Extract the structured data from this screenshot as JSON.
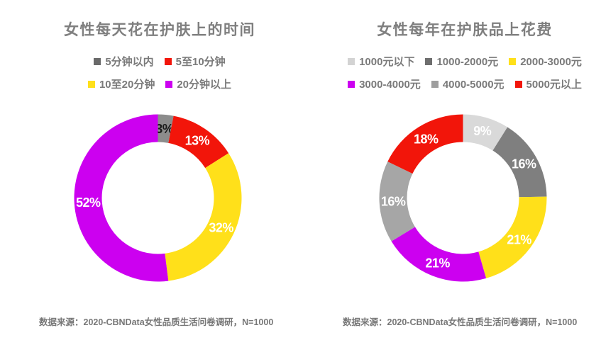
{
  "page": {
    "background": "#FFFFFF",
    "text_color": "#7F7F7F"
  },
  "chart_data": [
    {
      "type": "donut",
      "title": "女性每天花在护肤上的时间",
      "source_note": "数据来源：2020-CBNData女性品质生活问卷调研，N=1000",
      "legend_position": "top",
      "start_angle_deg": 0,
      "direction": "clockwise",
      "slices": [
        {
          "label": "5分钟以内",
          "value": 3,
          "display": "3%",
          "color": "#8C8C8C",
          "swatch_color": "#696969",
          "label_color": "#1A1A1A"
        },
        {
          "label": "5至10分钟",
          "value": 13,
          "display": "13%",
          "color": "#F2150A",
          "swatch_color": "#F2150A",
          "label_color": "#FFFFFF"
        },
        {
          "label": "10至20分钟",
          "value": 32,
          "display": "32%",
          "color": "#FFE01A",
          "swatch_color": "#FFE01A",
          "label_color": "#FFFFFF"
        },
        {
          "label": "20分钟以上",
          "value": 52,
          "display": "52%",
          "color": "#CC00F0",
          "swatch_color": "#CC00F0",
          "label_color": "#FFFFFF"
        }
      ],
      "legend_rows": [
        [
          0,
          1
        ],
        [
          2,
          3
        ]
      ]
    },
    {
      "type": "donut",
      "title": "女性每年在护肤品上花费",
      "source_note": "数据来源：2020-CBNData女性品质生活问卷调研，N=1000",
      "legend_position": "top",
      "start_angle_deg": 0,
      "direction": "clockwise",
      "slices": [
        {
          "label": "1000元以下",
          "value": 9,
          "display": "9%",
          "color": "#D9D9D9",
          "swatch_color": "#D3D3D3",
          "label_color": "#FFFFFF"
        },
        {
          "label": "1000-2000元",
          "value": 16,
          "display": "16%",
          "color": "#7F7F7F",
          "swatch_color": "#6E6E6E",
          "label_color": "#FFFFFF"
        },
        {
          "label": "2000-3000元",
          "value": 21,
          "display": "21%",
          "color": "#FFE01A",
          "swatch_color": "#FFE01A",
          "label_color": "#FFFFFF"
        },
        {
          "label": "3000-4000元",
          "value": 21,
          "display": "21%",
          "color": "#CC00F0",
          "swatch_color": "#CC00F0",
          "label_color": "#FFFFFF"
        },
        {
          "label": "4000-5000元",
          "value": 16,
          "display": "16%",
          "color": "#A6A6A6",
          "swatch_color": "#9E9E9E",
          "label_color": "#FFFFFF"
        },
        {
          "label": "5000元以上",
          "value": 18,
          "display": "18%",
          "color": "#F2150A",
          "swatch_color": "#F2150A",
          "label_color": "#FFFFFF"
        }
      ],
      "legend_rows": [
        [
          0,
          1,
          2
        ],
        [
          3,
          4,
          5
        ]
      ]
    }
  ],
  "geometry": {
    "outer_radius": 118,
    "inner_radius": 79
  }
}
